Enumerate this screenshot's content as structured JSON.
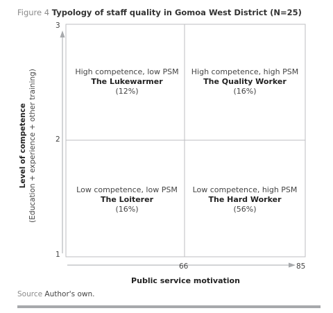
{
  "figure": {
    "number_label": "Figure 4",
    "title": "Typology of staff quality in Gomoa West District (N=25)"
  },
  "y_axis": {
    "title": "Level of competence",
    "subtitle": "(Education + experience + other training)",
    "ticks": [
      "3",
      "2",
      "1"
    ]
  },
  "x_axis": {
    "title": "Public service motivation",
    "ticks": [
      "66",
      "85"
    ]
  },
  "quadrants": {
    "top_left": {
      "description": "High competence, low PSM",
      "name": "The Lukewarmer",
      "share": "(12%)"
    },
    "top_right": {
      "description": "High competence, high PSM",
      "name": "The Quality Worker",
      "share": "(16%)"
    },
    "bottom_left": {
      "description": "Low competence, low PSM",
      "name": "The Loiterer",
      "share": "(16%)"
    },
    "bottom_right": {
      "description": "Low competence, high PSM",
      "name": "The Hard Worker",
      "share": "(56%)"
    }
  },
  "source": {
    "label": "Source",
    "text": "Author's own."
  },
  "colors": {
    "grid_line": "#bcbec0",
    "axis_line": "#a7a9ac",
    "bottom_rule": "#a7a9ac"
  }
}
